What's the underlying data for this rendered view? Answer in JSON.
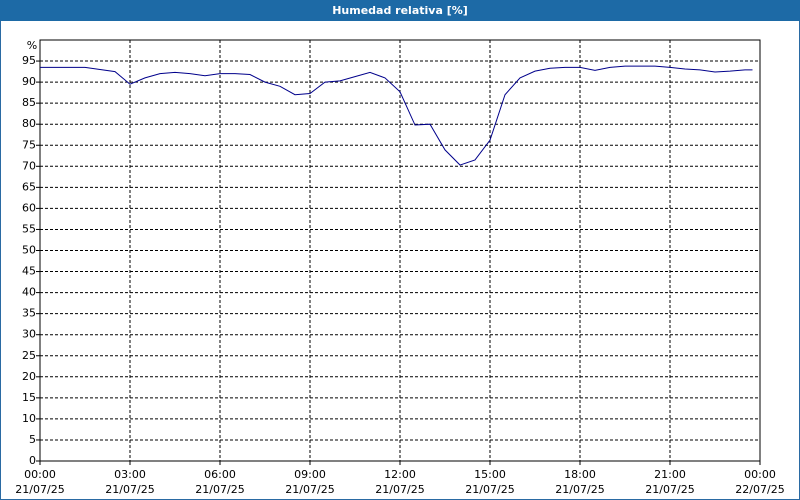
{
  "chart_data": {
    "type": "line",
    "title": "Humedad relativa [%]",
    "y_label": "%",
    "x": [
      0,
      0.5,
      1,
      1.5,
      2,
      2.5,
      3,
      3.5,
      4,
      4.5,
      5,
      5.5,
      6,
      6.5,
      7,
      7.5,
      8,
      8.5,
      9,
      9.5,
      10,
      10.5,
      11,
      11.5,
      12,
      12.5,
      13,
      13.5,
      14,
      14.5,
      15,
      15.5,
      16,
      16.5,
      17,
      17.5,
      18,
      18.5,
      19,
      19.5,
      20,
      20.5,
      21,
      21.5,
      22,
      22.5,
      23,
      23.5,
      23.75
    ],
    "series": [
      {
        "name": "Humedad relativa",
        "color": "#00008b",
        "values": [
          93.5,
          93.5,
          93.5,
          93.5,
          93,
          92.5,
          89.5,
          91,
          92,
          92.3,
          92,
          91.5,
          92,
          92,
          91.8,
          90,
          89,
          87,
          87.3,
          90,
          90.3,
          91.3,
          92.3,
          91,
          87.7,
          79.8,
          80,
          73.9,
          70.3,
          71.5,
          76.2,
          87,
          91,
          92.6,
          93.3,
          93.5,
          93.5,
          92.8,
          93.5,
          93.8,
          93.8,
          93.8,
          93.5,
          93.1,
          92.9,
          92.4,
          92.6,
          92.9,
          92.9
        ]
      }
    ],
    "xlim": [
      0,
      24
    ],
    "xticks": [
      {
        "value": 0,
        "label": "00:00",
        "date": "21/07/25"
      },
      {
        "value": 3,
        "label": "03:00",
        "date": "21/07/25"
      },
      {
        "value": 6,
        "label": "06:00",
        "date": "21/07/25"
      },
      {
        "value": 9,
        "label": "09:00",
        "date": "21/07/25"
      },
      {
        "value": 12,
        "label": "12:00",
        "date": "21/07/25"
      },
      {
        "value": 15,
        "label": "15:00",
        "date": "21/07/25"
      },
      {
        "value": 18,
        "label": "18:00",
        "date": "21/07/25"
      },
      {
        "value": 21,
        "label": "21:00",
        "date": "21/07/25"
      },
      {
        "value": 24,
        "label": "00:00",
        "date": "22/07/25"
      }
    ],
    "ylim": [
      0,
      100
    ],
    "yticks": [
      0,
      5,
      10,
      15,
      20,
      25,
      30,
      35,
      40,
      45,
      50,
      55,
      60,
      65,
      70,
      75,
      80,
      85,
      90,
      95
    ],
    "grid": true
  }
}
